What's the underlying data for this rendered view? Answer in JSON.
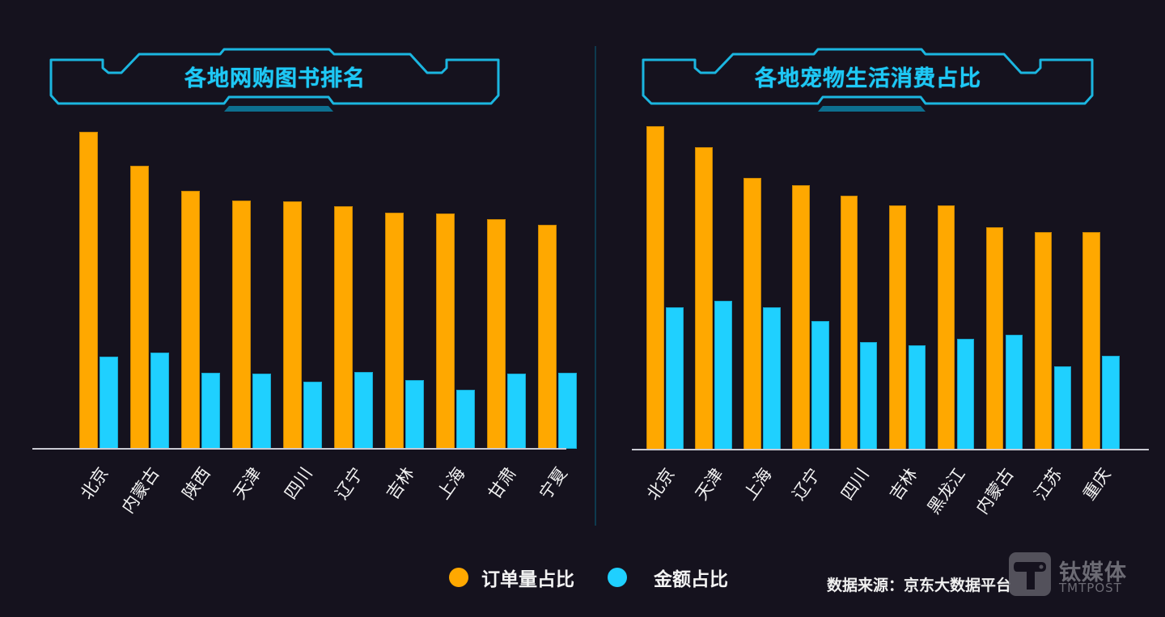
{
  "colors": {
    "background": "#15121e",
    "order_share": "#ffa800",
    "amount_share": "#1fd0ff",
    "title": "#1ec8f5",
    "frame": "#1bb6e0",
    "divider": "#0e3a4e"
  },
  "legend": {
    "items": [
      {
        "label": "订单量占比",
        "color": "#ffa800"
      },
      {
        "label": "金额占比",
        "color": "#1fd0ff"
      }
    ]
  },
  "source": "数据来源：京东大数据平台",
  "watermark": {
    "logo": "T",
    "cn": "钛媒体",
    "en": "TMTPOST"
  },
  "chart_data": [
    {
      "type": "bar",
      "title": "各地网购图书排名",
      "xlabel": "",
      "ylabel": "",
      "ylim": [
        0,
        100
      ],
      "grid": false,
      "legend_position": "bottom",
      "categories": [
        "北京",
        "内蒙古",
        "陕西",
        "天津",
        "四川",
        "辽宁",
        "吉林",
        "上海",
        "甘肃",
        "宁夏"
      ],
      "series": [
        {
          "name": "订单量占比",
          "values": [
            98.1,
            87.5,
            79.8,
            76.8,
            76.6,
            75.1,
            72.9,
            72.8,
            71.1,
            69.2
          ]
        },
        {
          "name": "金额占比",
          "values": [
            28.6,
            29.8,
            23.6,
            23.2,
            20.8,
            23.8,
            21.3,
            18.2,
            23.2,
            23.5
          ]
        }
      ]
    },
    {
      "type": "bar",
      "title": "各地宠物生活消费占比",
      "xlabel": "",
      "ylabel": "",
      "ylim": [
        0,
        100
      ],
      "grid": false,
      "legend_position": "bottom",
      "categories": [
        "北京",
        "天津",
        "上海",
        "辽宁",
        "四川",
        "吉林",
        "黑龙江",
        "内蒙古",
        "江苏",
        "重庆"
      ],
      "series": [
        {
          "name": "订单量占比",
          "values": [
            100,
            93.6,
            83.9,
            81.8,
            78.5,
            75.4,
            75.4,
            68.8,
            67.3,
            67.3
          ]
        },
        {
          "name": "金额占比",
          "values": [
            44.0,
            46.1,
            44.0,
            39.8,
            33.3,
            32.2,
            34.3,
            35.4,
            25.7,
            28.9
          ]
        }
      ]
    }
  ]
}
